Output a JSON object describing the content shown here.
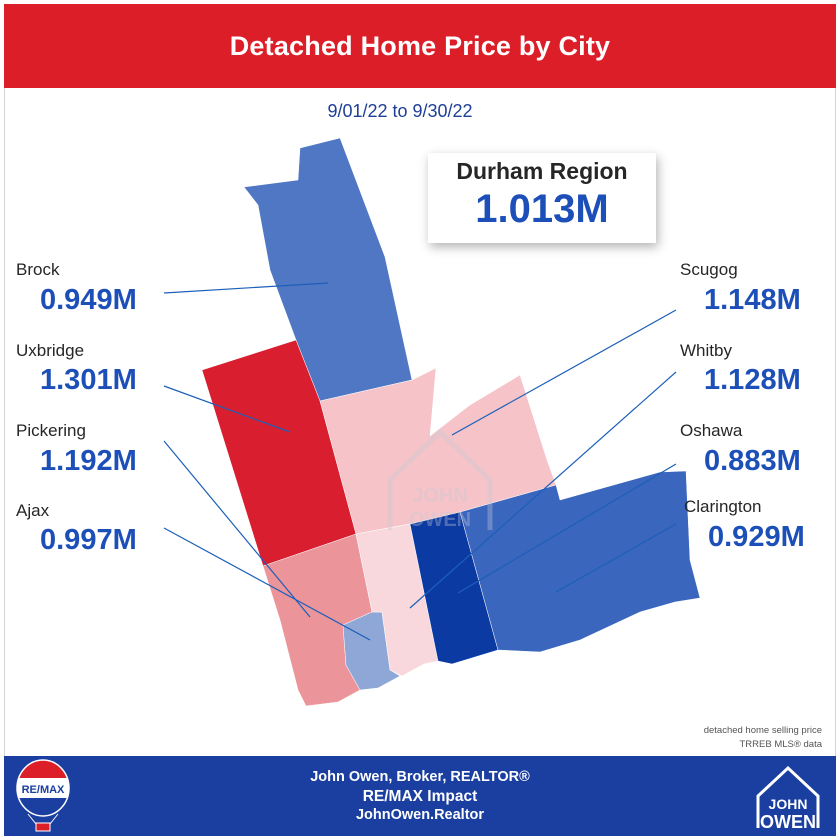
{
  "header": {
    "title": "Detached Home Price by City"
  },
  "date_range": "9/01/22 to 9/30/22",
  "region": {
    "name": "Durham Region",
    "value": "1.013M"
  },
  "cities": [
    {
      "name": "Brock",
      "value": "0.949M",
      "color": "#4f77c3"
    },
    {
      "name": "Uxbridge",
      "value": "1.301M",
      "color": "#d91e2f"
    },
    {
      "name": "Pickering",
      "value": "1.192M",
      "color": "#eb959b"
    },
    {
      "name": "Ajax",
      "value": "0.997M",
      "color": "#8ea7d7"
    },
    {
      "name": "Scugog",
      "value": "1.148M",
      "color": "#f5c3c8"
    },
    {
      "name": "Whitby",
      "value": "1.128M",
      "color": "#f8d8dc"
    },
    {
      "name": "Oshawa",
      "value": "0.883M",
      "color": "#0b3aa3"
    },
    {
      "name": "Clarington",
      "value": "0.929M",
      "color": "#3a66be"
    }
  ],
  "note": {
    "line1": "detached home selling price",
    "line2": "TRREB MLS® data"
  },
  "footer": {
    "line1": "John Owen, Broker, REALTOR®",
    "line2": "RE/MAX Impact",
    "line3": "JohnOwen.Realtor"
  },
  "logos": {
    "remax": "RE/MAX",
    "john": "JOHN",
    "owen": "OWEN"
  },
  "watermark": {
    "john": "JOHN",
    "owen": "OWEN"
  },
  "colors": {
    "header_red": "#dc1e28",
    "footer_blue": "#1b3fa0",
    "value_blue": "#1c4fb8"
  }
}
